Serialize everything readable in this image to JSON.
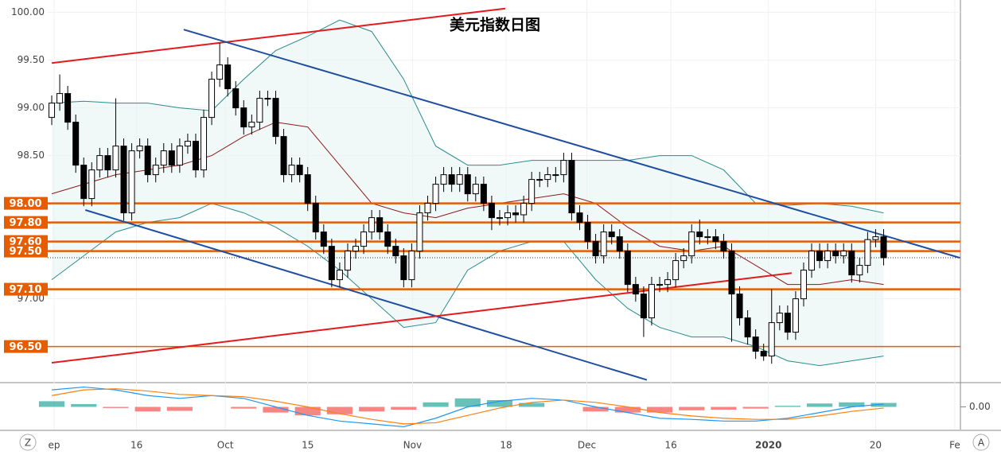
{
  "chart_data": [
    {
      "type": "candlestick",
      "title": "美元指数日图",
      "x": [
        0,
        1,
        2,
        3,
        4,
        5,
        6,
        7,
        8,
        9,
        10,
        11,
        12,
        13,
        14,
        15,
        16,
        17,
        18,
        19,
        20,
        21,
        22,
        23,
        24,
        25,
        26,
        27,
        28,
        29,
        30,
        31,
        32,
        33,
        34,
        35,
        36,
        37,
        38,
        39,
        40,
        41,
        42,
        43,
        44,
        45,
        46,
        47,
        48,
        49,
        50,
        51,
        52,
        53,
        54,
        55,
        56,
        57,
        58,
        59,
        60,
        61,
        62,
        63,
        64,
        65,
        66,
        67,
        68,
        69,
        70,
        71,
        72,
        73,
        74,
        75,
        76,
        77,
        78,
        79,
        80,
        81,
        82,
        83,
        84,
        85,
        86,
        87,
        88,
        89,
        90,
        91,
        92,
        93,
        94,
        95,
        96,
        97,
        98,
        99,
        100,
        101,
        102,
        103,
        104
      ],
      "ohlc": [
        [
          98.9,
          99.13,
          98.82,
          99.05
        ],
        [
          99.05,
          99.35,
          98.97,
          99.15
        ],
        [
          99.15,
          99.23,
          98.77,
          98.85
        ],
        [
          98.85,
          98.93,
          98.32,
          98.4
        ],
        [
          98.4,
          98.48,
          97.97,
          98.05
        ],
        [
          98.05,
          98.43,
          97.97,
          98.35
        ],
        [
          98.35,
          98.58,
          98.27,
          98.5
        ],
        [
          98.5,
          98.58,
          98.27,
          98.35
        ],
        [
          98.35,
          99.1,
          98.27,
          98.6
        ],
        [
          98.6,
          98.68,
          97.82,
          97.9
        ],
        [
          97.9,
          98.63,
          97.82,
          98.55
        ],
        [
          98.55,
          98.68,
          98.47,
          98.6
        ],
        [
          98.6,
          98.68,
          98.22,
          98.3
        ],
        [
          98.3,
          98.48,
          98.22,
          98.4
        ],
        [
          98.4,
          98.63,
          98.32,
          98.55
        ],
        [
          98.55,
          98.63,
          98.32,
          98.4
        ],
        [
          98.4,
          98.68,
          98.32,
          98.6
        ],
        [
          98.6,
          98.73,
          98.52,
          98.65
        ],
        [
          98.65,
          98.73,
          98.27,
          98.35
        ],
        [
          98.35,
          98.98,
          98.27,
          98.9
        ],
        [
          98.9,
          99.38,
          98.82,
          99.3
        ],
        [
          99.3,
          99.68,
          99.22,
          99.45
        ],
        [
          99.45,
          99.53,
          99.12,
          99.2
        ],
        [
          99.2,
          99.28,
          98.92,
          99.0
        ],
        [
          99.0,
          99.08,
          98.72,
          98.8
        ],
        [
          98.8,
          98.93,
          98.72,
          98.85
        ],
        [
          98.85,
          99.18,
          98.77,
          99.1
        ],
        [
          99.1,
          99.18,
          99.02,
          99.1
        ],
        [
          99.1,
          99.18,
          98.62,
          98.7
        ],
        [
          98.7,
          98.78,
          98.22,
          98.3
        ],
        [
          98.3,
          98.48,
          98.22,
          98.4
        ],
        [
          98.4,
          98.48,
          98.22,
          98.3
        ],
        [
          98.3,
          98.38,
          97.92,
          98.0
        ],
        [
          98.0,
          98.08,
          97.62,
          97.7
        ],
        [
          97.7,
          97.78,
          97.47,
          97.55
        ],
        [
          97.55,
          97.63,
          97.12,
          97.2
        ],
        [
          97.2,
          97.38,
          97.12,
          97.3
        ],
        [
          97.3,
          97.58,
          97.22,
          97.5
        ],
        [
          97.5,
          97.63,
          97.42,
          97.55
        ],
        [
          97.55,
          97.78,
          97.47,
          97.7
        ],
        [
          97.7,
          97.93,
          97.62,
          97.85
        ],
        [
          97.85,
          97.93,
          97.62,
          97.7
        ],
        [
          97.7,
          97.78,
          97.47,
          97.55
        ],
        [
          97.55,
          97.63,
          97.37,
          97.45
        ],
        [
          97.45,
          97.53,
          97.12,
          97.2
        ],
        [
          97.2,
          97.58,
          97.12,
          97.5
        ],
        [
          97.5,
          97.98,
          97.42,
          97.9
        ],
        [
          97.9,
          98.08,
          97.82,
          98.0
        ],
        [
          98.0,
          98.28,
          97.92,
          98.2
        ],
        [
          98.2,
          98.38,
          98.12,
          98.3
        ],
        [
          98.3,
          98.38,
          98.12,
          98.2
        ],
        [
          98.2,
          98.38,
          98.12,
          98.3
        ],
        [
          98.3,
          98.38,
          98.02,
          98.1
        ],
        [
          98.1,
          98.28,
          98.02,
          98.2
        ],
        [
          98.2,
          98.28,
          97.92,
          98.0
        ],
        [
          98.0,
          98.08,
          97.72,
          97.85
        ],
        [
          97.85,
          97.93,
          97.77,
          97.85
        ],
        [
          97.85,
          97.98,
          97.77,
          97.9
        ],
        [
          97.9,
          97.98,
          97.8,
          97.88
        ],
        [
          97.88,
          98.08,
          97.8,
          98.0
        ],
        [
          98.0,
          98.33,
          97.92,
          98.25
        ],
        [
          98.25,
          98.33,
          98.17,
          98.25
        ],
        [
          98.25,
          98.38,
          98.17,
          98.3
        ],
        [
          98.3,
          98.38,
          98.22,
          98.3
        ],
        [
          98.3,
          98.53,
          98.22,
          98.45
        ],
        [
          98.45,
          98.53,
          97.82,
          97.9
        ],
        [
          97.9,
          97.98,
          97.72,
          97.8
        ],
        [
          97.8,
          97.88,
          97.52,
          97.6
        ],
        [
          97.6,
          97.68,
          97.37,
          97.45
        ],
        [
          97.45,
          97.78,
          97.37,
          97.7
        ],
        [
          97.7,
          97.78,
          97.57,
          97.65
        ],
        [
          97.65,
          97.73,
          97.42,
          97.5
        ],
        [
          97.5,
          97.58,
          97.07,
          97.15
        ],
        [
          97.15,
          97.23,
          96.97,
          97.05
        ],
        [
          97.05,
          97.13,
          96.6,
          96.8
        ],
        [
          96.8,
          97.23,
          96.72,
          97.15
        ],
        [
          97.15,
          97.23,
          97.07,
          97.15
        ],
        [
          97.15,
          97.28,
          97.07,
          97.2
        ],
        [
          97.2,
          97.48,
          97.12,
          97.4
        ],
        [
          97.4,
          97.53,
          97.32,
          97.45
        ],
        [
          97.45,
          97.78,
          97.37,
          97.7
        ],
        [
          97.7,
          97.83,
          97.57,
          97.65
        ],
        [
          97.65,
          97.73,
          97.57,
          97.65
        ],
        [
          97.65,
          97.73,
          97.52,
          97.6
        ],
        [
          97.6,
          97.68,
          97.42,
          97.5
        ],
        [
          97.5,
          97.58,
          96.55,
          97.05
        ],
        [
          97.05,
          97.13,
          96.72,
          96.8
        ],
        [
          96.8,
          96.88,
          96.52,
          96.6
        ],
        [
          96.6,
          96.68,
          96.37,
          96.45
        ],
        [
          96.45,
          96.53,
          96.35,
          96.4
        ],
        [
          96.4,
          97.1,
          96.32,
          96.75
        ],
        [
          96.75,
          96.93,
          96.67,
          96.85
        ],
        [
          96.85,
          96.93,
          96.57,
          96.65
        ],
        [
          96.65,
          97.08,
          96.57,
          97.0
        ],
        [
          97.0,
          97.38,
          96.92,
          97.3
        ],
        [
          97.3,
          97.58,
          97.22,
          97.5
        ],
        [
          97.5,
          97.58,
          97.32,
          97.4
        ],
        [
          97.4,
          97.58,
          97.32,
          97.5
        ],
        [
          97.5,
          97.58,
          97.37,
          97.45
        ],
        [
          97.45,
          97.58,
          97.37,
          97.5
        ],
        [
          97.5,
          97.58,
          97.17,
          97.25
        ],
        [
          97.25,
          97.43,
          97.17,
          97.35
        ],
        [
          97.35,
          97.7,
          97.27,
          97.62
        ],
        [
          97.62,
          97.73,
          97.54,
          97.65
        ],
        [
          97.65,
          97.73,
          97.35,
          97.43
        ]
      ],
      "up_color": "#ffffff",
      "down_color": "#000000",
      "xlim": [
        -0.5,
        113.6
      ],
      "xticks": [
        {
          "value": 0.3,
          "label": "ep"
        },
        {
          "value": 10.6,
          "label": "16"
        },
        {
          "value": 21.7,
          "label": "Oct"
        },
        {
          "value": 32,
          "label": "15"
        },
        {
          "value": 45.1,
          "label": "Nov"
        },
        {
          "value": 56.8,
          "label": "18"
        },
        {
          "value": 66.9,
          "label": "Dec"
        },
        {
          "value": 77.4,
          "label": "16"
        },
        {
          "value": 89.6,
          "label": "2020"
        },
        {
          "value": 103,
          "label": "20"
        },
        {
          "value": 112.9,
          "label": "Fe"
        }
      ],
      "ylim": [
        96.13,
        100.13
      ],
      "yticks": [
        {
          "value": 97,
          "label": "97.00"
        },
        {
          "value": 98.5,
          "label": "98.50"
        },
        {
          "value": 99,
          "label": "99.00"
        },
        {
          "value": 99.5,
          "label": "99.50"
        },
        {
          "value": 100,
          "label": "100.00"
        }
      ],
      "grid": true,
      "levels_color": "#e65c00",
      "levels": [
        {
          "value": 98,
          "label": "98.00"
        },
        {
          "value": 97.8,
          "label": "97.80"
        },
        {
          "value": 97.6,
          "label": "97.60"
        },
        {
          "value": 97.5,
          "label": "97.50"
        },
        {
          "value": 97.1,
          "label": "97.10"
        },
        {
          "value": 96.5,
          "label": "96.50"
        }
      ],
      "trend_lines": [
        {
          "color": "#e31a1c",
          "points": [
            [
              0,
              99.47
            ],
            [
              56.7,
              100.04
            ]
          ]
        },
        {
          "color": "#1f4e9e",
          "points": [
            [
              16.5,
              99.82
            ],
            [
              113.5,
              97.43
            ]
          ]
        },
        {
          "color": "#1f4e9e",
          "points": [
            [
              4.2,
              97.93
            ],
            [
              74.4,
              96.15
            ]
          ]
        },
        {
          "color": "#e31a1c",
          "points": [
            [
              0,
              96.33
            ],
            [
              92.5,
              97.27
            ]
          ]
        }
      ],
      "bands": {
        "x": [
          0,
          4,
          8,
          12,
          16,
          20,
          24,
          28,
          32,
          36,
          40,
          44,
          48,
          52,
          56,
          60,
          64,
          68,
          72,
          76,
          80,
          84,
          88,
          92,
          96,
          100,
          104
        ],
        "upper": [
          99.05,
          99.07,
          99.05,
          99.05,
          99.0,
          98.97,
          99.3,
          99.6,
          99.75,
          99.92,
          99.8,
          99.3,
          98.6,
          98.4,
          98.4,
          98.45,
          98.45,
          98.45,
          98.45,
          98.5,
          98.5,
          98.35,
          98.0,
          97.98,
          98.0,
          97.97,
          97.9
        ],
        "middle": [
          98.1,
          98.2,
          98.3,
          98.35,
          98.4,
          98.5,
          98.7,
          98.85,
          98.8,
          98.4,
          98.0,
          97.9,
          97.85,
          97.95,
          98.0,
          98.05,
          98.1,
          98.0,
          97.75,
          97.55,
          97.5,
          97.55,
          97.35,
          97.15,
          97.15,
          97.2,
          97.15
        ],
        "lower": [
          97.2,
          97.45,
          97.7,
          97.8,
          97.85,
          98.0,
          97.9,
          97.75,
          97.55,
          97.3,
          97.0,
          96.7,
          96.75,
          97.3,
          97.5,
          97.6,
          97.6,
          97.2,
          96.9,
          96.7,
          96.6,
          96.6,
          96.5,
          96.35,
          96.3,
          96.35,
          96.4
        ],
        "band_color": "#2a8c8c",
        "middle_color": "#8b1a1a"
      }
    },
    {
      "type": "macd",
      "x": [
        0,
        4,
        8,
        12,
        16,
        20,
        24,
        28,
        32,
        36,
        40,
        44,
        48,
        52,
        56,
        60,
        64,
        68,
        72,
        76,
        80,
        84,
        88,
        92,
        96,
        100,
        104
      ],
      "macd": [
        0.3,
        0.35,
        0.3,
        0.2,
        0.15,
        0.2,
        0.15,
        0.0,
        -0.15,
        -0.25,
        -0.3,
        -0.35,
        -0.2,
        0.0,
        0.1,
        0.15,
        0.12,
        0.0,
        -0.1,
        -0.2,
        -0.22,
        -0.25,
        -0.25,
        -0.2,
        -0.1,
        0.0,
        0.05
      ],
      "signal": [
        0.2,
        0.3,
        0.32,
        0.28,
        0.22,
        0.2,
        0.18,
        0.1,
        0.0,
        -0.12,
        -0.22,
        -0.3,
        -0.28,
        -0.15,
        -0.02,
        0.08,
        0.12,
        0.08,
        0.0,
        -0.1,
        -0.16,
        -0.2,
        -0.22,
        -0.22,
        -0.16,
        -0.08,
        -0.02
      ],
      "hist": [
        0.1,
        0.05,
        -0.02,
        -0.08,
        -0.07,
        0,
        -0.03,
        -0.1,
        -0.15,
        -0.13,
        -0.08,
        -0.05,
        0.08,
        0.15,
        0.12,
        0.07,
        0,
        -0.08,
        -0.1,
        -0.1,
        -0.06,
        -0.05,
        -0.03,
        0.02,
        0.06,
        0.08,
        0.07
      ],
      "macd_color": "#2196f3",
      "signal_color": "#ff7f0e",
      "pos_color": "#26a69a",
      "neg_color": "#ef5350",
      "ylim": [
        -0.4,
        0.4
      ],
      "yticks": [
        {
          "value": 0,
          "label": "0.00"
        }
      ]
    }
  ],
  "buttons": [
    "Z",
    "A"
  ]
}
